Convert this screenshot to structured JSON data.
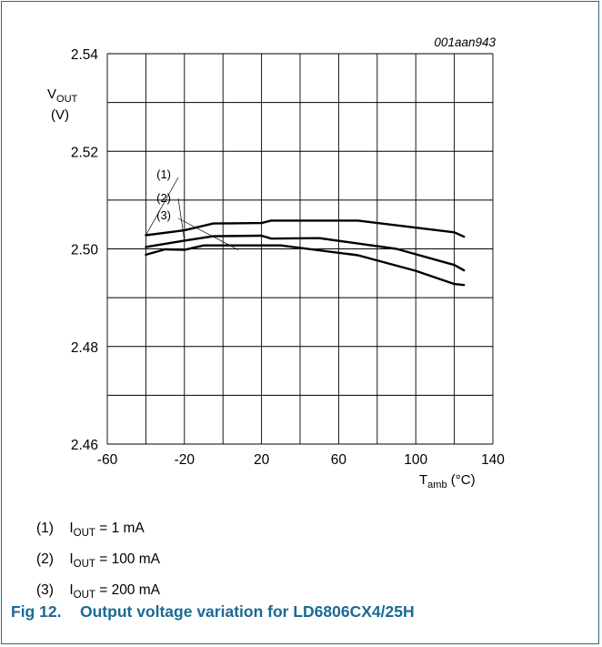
{
  "chart_data": {
    "type": "line",
    "figure_id": "001aan943",
    "y_label_main": "V",
    "y_label_sub": "OUT",
    "y_unit": "(V)",
    "x_label_main": "T",
    "x_label_sub": "amb",
    "x_unit": "(°C)",
    "xlim": [
      -60,
      140
    ],
    "ylim": [
      2.46,
      2.54
    ],
    "x_ticks": [
      -60,
      -20,
      20,
      60,
      100,
      140
    ],
    "x_tick_labels": [
      "-60",
      "-20",
      "20",
      "60",
      "100",
      "140"
    ],
    "y_ticks": [
      2.46,
      2.48,
      2.5,
      2.52,
      2.54
    ],
    "y_tick_labels": [
      "2.46",
      "2.48",
      "2.50",
      "2.52",
      "2.54"
    ],
    "grid": true,
    "series": [
      {
        "name": "(1)",
        "x": [
          -40,
          -20,
          -5,
          20,
          25,
          70,
          120,
          125
        ],
        "y": [
          2.5028,
          2.5038,
          2.5052,
          2.5053,
          2.5058,
          2.5058,
          2.5034,
          2.5025
        ]
      },
      {
        "name": "(2)",
        "x": [
          -40,
          -20,
          -5,
          20,
          25,
          50,
          90,
          120,
          125
        ],
        "y": [
          2.5004,
          2.5017,
          2.5026,
          2.5027,
          2.5021,
          2.5022,
          2.5,
          2.4967,
          2.4956
        ]
      },
      {
        "name": "(3)",
        "x": [
          -40,
          -30,
          -20,
          -10,
          30,
          70,
          100,
          120,
          125
        ],
        "y": [
          2.4988,
          2.4999,
          2.4998,
          2.5007,
          2.5007,
          2.4987,
          2.4955,
          2.4928,
          2.4926
        ]
      }
    ]
  },
  "legend": [
    {
      "num": "(1)",
      "label_main": "I",
      "label_sub": "OUT",
      "label_rest": " = 1 mA"
    },
    {
      "num": "(2)",
      "label_main": "I",
      "label_sub": "OUT",
      "label_rest": " = 100 mA"
    },
    {
      "num": "(3)",
      "label_main": "I",
      "label_sub": "OUT",
      "label_rest": " = 200 mA"
    }
  ],
  "caption": {
    "fig": "Fig 12.",
    "text": "Output voltage variation for LD6806CX4/25H"
  }
}
